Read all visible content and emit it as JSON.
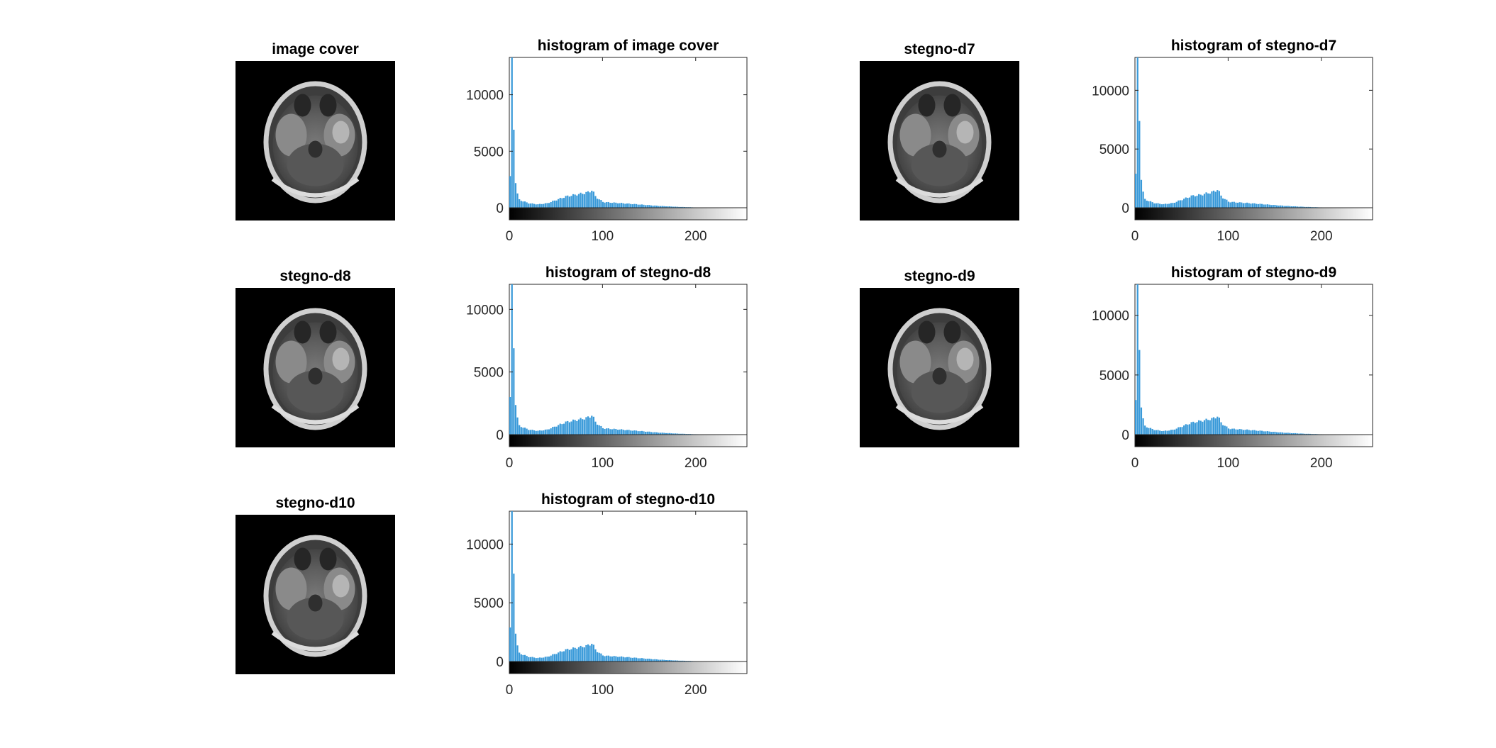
{
  "figure": {
    "images": [
      {
        "title": "image cover"
      },
      {
        "title": "stegno-d7"
      },
      {
        "title": "stegno-d8"
      },
      {
        "title": "stegno-d9"
      },
      {
        "title": "stegno-d10"
      }
    ],
    "colors": {
      "bar": "#3a9ad9",
      "axis": "#262626",
      "background": "#ffffff",
      "image_background": "#000000"
    }
  },
  "chart_data": [
    {
      "type": "bar",
      "title": "histogram of image cover",
      "xlim": [
        0,
        255
      ],
      "ylim": [
        0,
        13300
      ],
      "xticks": [
        "0",
        "100",
        "200"
      ],
      "yticks": [
        "0",
        "5000",
        "10000"
      ],
      "xlabel": "",
      "ylabel": "",
      "colorbar": "grayscale 0-255",
      "x": [
        0,
        2,
        4,
        6,
        8,
        10,
        20,
        30,
        40,
        50,
        60,
        70,
        80,
        85,
        88,
        92,
        100,
        120,
        140,
        160,
        180,
        200,
        220,
        255
      ],
      "values": [
        2800,
        13300,
        7000,
        2300,
        1200,
        700,
        400,
        300,
        400,
        700,
        1000,
        1150,
        1300,
        1400,
        1600,
        950,
        500,
        400,
        280,
        160,
        80,
        30,
        10,
        0
      ]
    },
    {
      "type": "bar",
      "title": "histogram of stegno-d7",
      "xlim": [
        0,
        255
      ],
      "ylim": [
        0,
        12800
      ],
      "xticks": [
        "0",
        "100",
        "200"
      ],
      "yticks": [
        "0",
        "5000",
        "10000"
      ],
      "xlabel": "",
      "ylabel": "",
      "colorbar": "grayscale 0-255",
      "x": [
        0,
        2,
        4,
        6,
        8,
        10,
        20,
        30,
        40,
        50,
        60,
        70,
        80,
        85,
        88,
        92,
        100,
        120,
        140,
        160,
        180,
        200,
        220,
        255
      ],
      "values": [
        2900,
        12800,
        7500,
        2500,
        1300,
        700,
        400,
        300,
        400,
        700,
        1000,
        1100,
        1300,
        1400,
        1600,
        950,
        500,
        400,
        280,
        160,
        80,
        30,
        10,
        0
      ]
    },
    {
      "type": "bar",
      "title": "histogram of stegno-d8",
      "xlim": [
        0,
        255
      ],
      "ylim": [
        0,
        12000
      ],
      "xticks": [
        "0",
        "100",
        "200"
      ],
      "yticks": [
        "0",
        "5000",
        "10000"
      ],
      "xlabel": "",
      "ylabel": "",
      "colorbar": "grayscale 0-255",
      "x": [
        0,
        2,
        4,
        6,
        8,
        10,
        20,
        30,
        40,
        50,
        60,
        70,
        80,
        85,
        88,
        92,
        100,
        120,
        140,
        160,
        180,
        200,
        220,
        255
      ],
      "values": [
        3000,
        12000,
        7000,
        2500,
        1300,
        700,
        400,
        300,
        400,
        700,
        1000,
        1150,
        1300,
        1400,
        1600,
        950,
        500,
        400,
        280,
        160,
        80,
        30,
        10,
        0
      ]
    },
    {
      "type": "bar",
      "title": "histogram of stegno-d9",
      "xlim": [
        0,
        255
      ],
      "ylim": [
        0,
        12600
      ],
      "xticks": [
        "0",
        "100",
        "200"
      ],
      "yticks": [
        "0",
        "5000",
        "10000"
      ],
      "xlabel": "",
      "ylabel": "",
      "colorbar": "grayscale 0-255",
      "x": [
        0,
        2,
        4,
        6,
        8,
        10,
        20,
        30,
        40,
        50,
        60,
        70,
        80,
        85,
        88,
        92,
        100,
        120,
        140,
        160,
        180,
        200,
        220,
        255
      ],
      "values": [
        2900,
        12600,
        7200,
        2400,
        1300,
        700,
        400,
        300,
        400,
        700,
        1000,
        1150,
        1300,
        1400,
        1600,
        950,
        500,
        400,
        280,
        160,
        80,
        30,
        10,
        0
      ]
    },
    {
      "type": "bar",
      "title": "histogram of stegno-d10",
      "xlim": [
        0,
        255
      ],
      "ylim": [
        0,
        12800
      ],
      "xticks": [
        "0",
        "100",
        "200"
      ],
      "yticks": [
        "0",
        "5000",
        "10000"
      ],
      "xlabel": "",
      "ylabel": "",
      "colorbar": "grayscale 0-255",
      "x": [
        0,
        2,
        4,
        6,
        8,
        10,
        20,
        30,
        40,
        50,
        60,
        70,
        80,
        85,
        88,
        92,
        100,
        120,
        140,
        160,
        180,
        200,
        220,
        255
      ],
      "values": [
        2900,
        12800,
        7600,
        2500,
        1300,
        700,
        400,
        300,
        400,
        700,
        1000,
        1150,
        1300,
        1400,
        1600,
        950,
        500,
        400,
        280,
        160,
        80,
        30,
        10,
        0
      ]
    }
  ]
}
